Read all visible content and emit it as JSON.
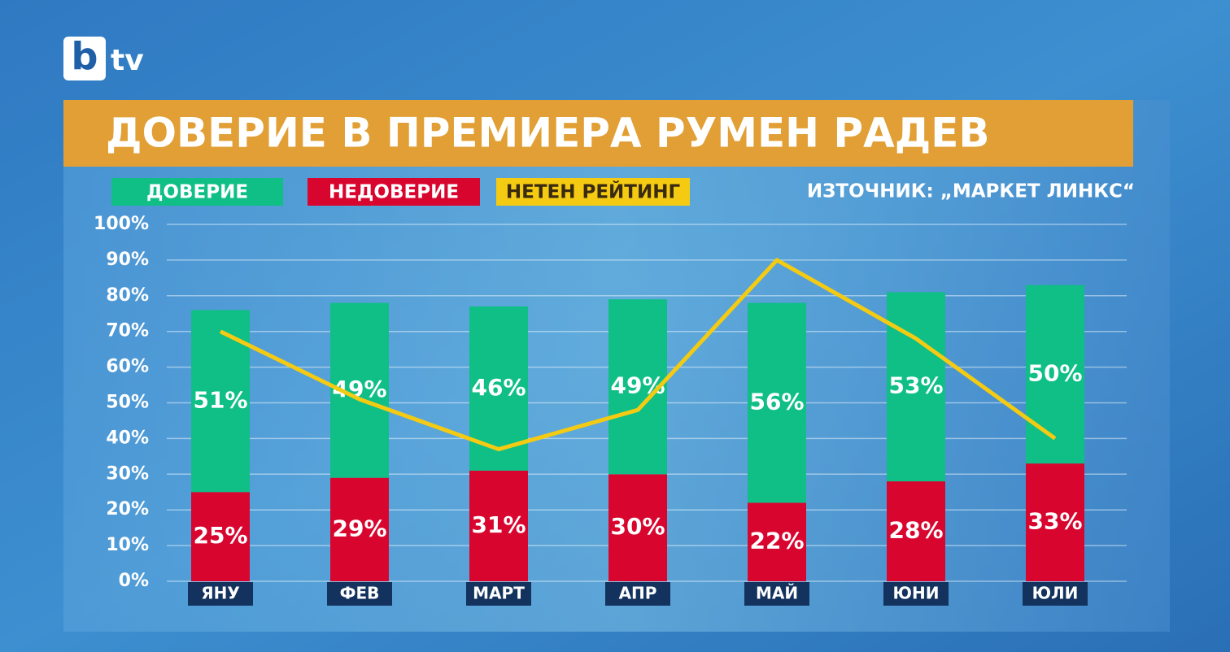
{
  "chart_data": {
    "type": "bar",
    "stacked": true,
    "logo": {
      "mark": "b",
      "text": "tv"
    },
    "title": "ДОВЕРИЕ В ПРЕМИЕРА РУМЕН РАДЕВ",
    "source": "ИЗТОЧНИК: „МАРКЕТ ЛИНКС“",
    "categories": [
      "ЯНУ",
      "ФЕВ",
      "МАРТ",
      "АПР",
      "МАЙ",
      "ЮНИ",
      "ЮЛИ"
    ],
    "series": [
      {
        "name": "ДОВЕРИЕ",
        "color": "#0fbf86",
        "values": [
          51,
          49,
          46,
          49,
          56,
          53,
          50
        ],
        "value_labels": [
          "51%",
          "49%",
          "46%",
          "49%",
          "56%",
          "53%",
          "50%"
        ]
      },
      {
        "name": "НЕДОВЕРИЕ",
        "color": "#d8062f",
        "values": [
          25,
          29,
          31,
          30,
          22,
          28,
          33
        ],
        "value_labels": [
          "25%",
          "29%",
          "31%",
          "30%",
          "22%",
          "28%",
          "33%"
        ]
      },
      {
        "name": "НЕТЕН РЕЙТИНГ",
        "color": "#f4cb12",
        "type": "line",
        "values": [
          70,
          51,
          37,
          48,
          90,
          68,
          40
        ]
      }
    ],
    "ylim": [
      0,
      100
    ],
    "yticks": [
      {
        "value": 0,
        "label": "0%"
      },
      {
        "value": 10,
        "label": "10%"
      },
      {
        "value": 20,
        "label": "20%"
      },
      {
        "value": 30,
        "label": "30%"
      },
      {
        "value": 40,
        "label": "40%"
      },
      {
        "value": 50,
        "label": "50%"
      },
      {
        "value": 60,
        "label": "60%"
      },
      {
        "value": 70,
        "label": "70%"
      },
      {
        "value": 80,
        "label": "80%"
      },
      {
        "value": 90,
        "label": "90%"
      },
      {
        "value": 100,
        "label": "100%"
      }
    ],
    "grid": true
  }
}
